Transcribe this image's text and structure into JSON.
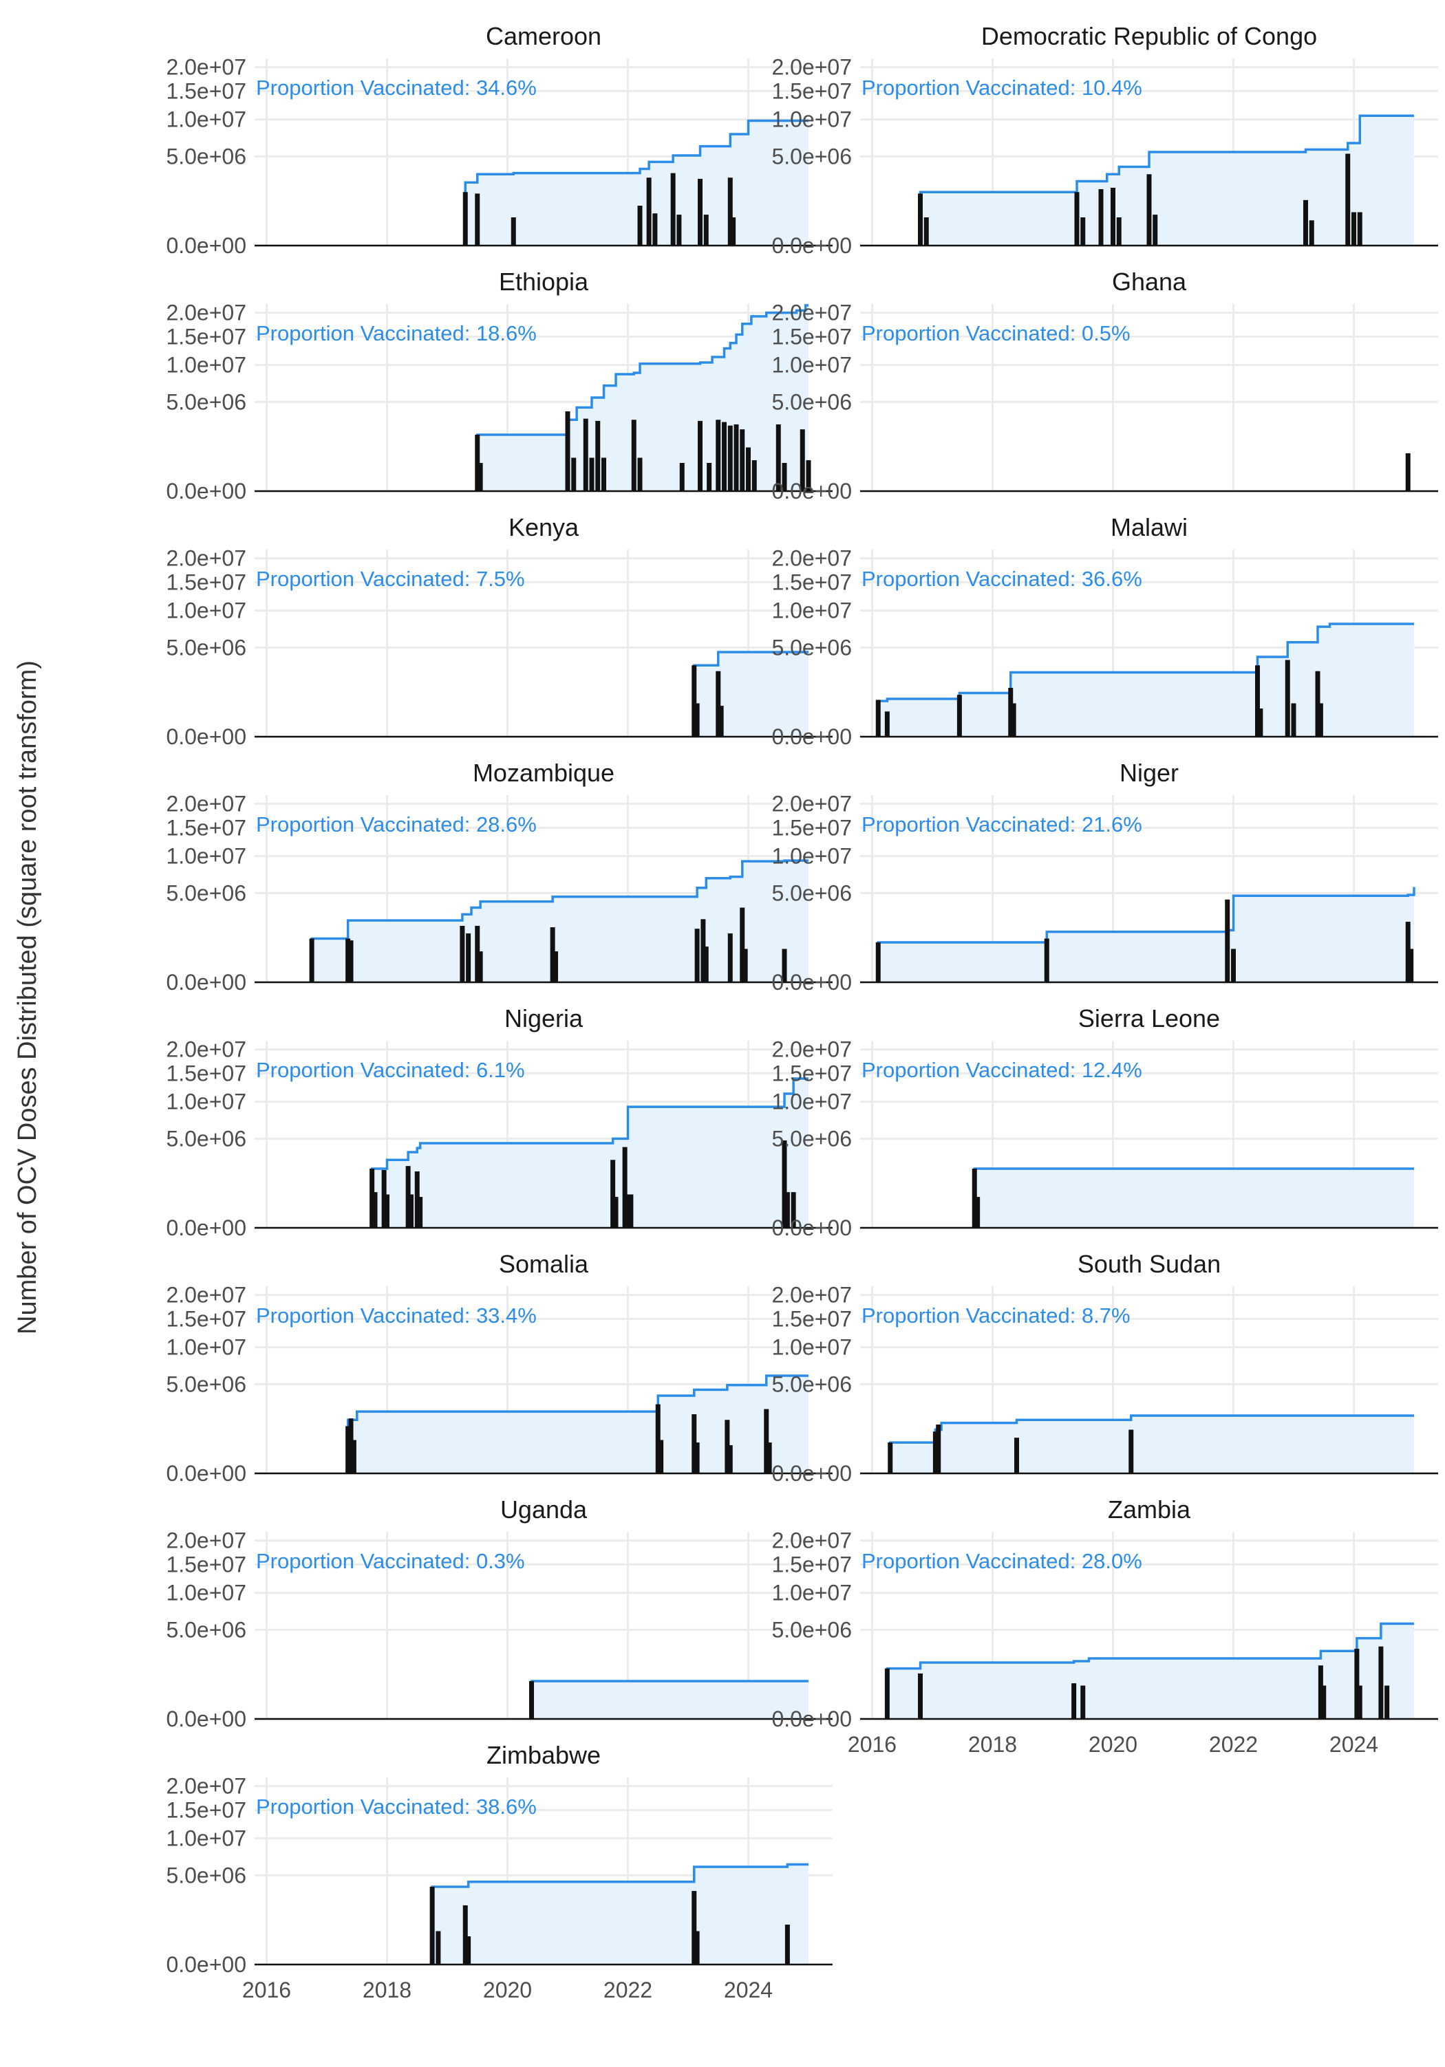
{
  "chart_data": {
    "type": "step-area with bars (faceted)",
    "ylabel": "Number of OCV Doses Distributed (square root transform)",
    "y_scale": "sqrt",
    "ylim": [
      0,
      22000000
    ],
    "y_ticks": [
      {
        "value": 0,
        "label": "0.0e+00"
      },
      {
        "value": 5000000,
        "label": "5.0e+06"
      },
      {
        "value": 10000000,
        "label": "1.0e+07"
      },
      {
        "value": 15000000,
        "label": "1.5e+07"
      },
      {
        "value": 20000000,
        "label": "2.0e+07"
      }
    ],
    "xlim": [
      2015.8,
      2025.4
    ],
    "x_ticks": [
      {
        "value": 2016,
        "label": "2016"
      },
      {
        "value": 2018,
        "label": "2018"
      },
      {
        "value": 2020,
        "label": "2020"
      },
      {
        "value": 2022,
        "label": "2022"
      },
      {
        "value": 2024,
        "label": "2024"
      }
    ],
    "grid": true,
    "colors": {
      "cumulative_line": "#2b8de8",
      "cumulative_fill": "#e6f2fc",
      "bars": "#111111",
      "annotation": "#2b8de8",
      "grid": "#ebebeb"
    },
    "annotation_prefix": "Proportion Vaccinated: ",
    "panels": [
      {
        "country": "Cameroon",
        "proportion": "34.6%",
        "bars": [
          [
            2019.3,
            1800000
          ],
          [
            2019.5,
            1700000
          ],
          [
            2020.1,
            500000
          ],
          [
            2022.2,
            1000000
          ],
          [
            2022.35,
            2900000
          ],
          [
            2022.45,
            650000
          ],
          [
            2022.75,
            3300000
          ],
          [
            2022.85,
            600000
          ],
          [
            2023.2,
            2800000
          ],
          [
            2023.3,
            600000
          ],
          [
            2023.7,
            2900000
          ],
          [
            2023.75,
            500000
          ]
        ],
        "cumulative": [
          [
            2019.3,
            2500000
          ],
          [
            2019.5,
            3200000
          ],
          [
            2020.1,
            3300000
          ],
          [
            2022.2,
            3700000
          ],
          [
            2022.35,
            4400000
          ],
          [
            2022.75,
            5100000
          ],
          [
            2023.2,
            6200000
          ],
          [
            2023.7,
            7800000
          ],
          [
            2024.0,
            9800000
          ],
          [
            2025.0,
            9800000
          ]
        ]
      },
      {
        "country": "Democratic Republic of Congo",
        "proportion": "10.4%",
        "bars": [
          [
            2016.8,
            1700000
          ],
          [
            2016.9,
            500000
          ],
          [
            2019.4,
            1800000
          ],
          [
            2019.5,
            500000
          ],
          [
            2019.8,
            2000000
          ],
          [
            2020.0,
            2100000
          ],
          [
            2020.1,
            500000
          ],
          [
            2020.6,
            3200000
          ],
          [
            2020.7,
            600000
          ],
          [
            2023.2,
            1300000
          ],
          [
            2023.3,
            400000
          ],
          [
            2023.9,
            5300000
          ],
          [
            2024.0,
            700000
          ],
          [
            2024.1,
            700000
          ]
        ],
        "cumulative": [
          [
            2016.8,
            1800000
          ],
          [
            2019.4,
            2600000
          ],
          [
            2019.9,
            3200000
          ],
          [
            2020.1,
            3900000
          ],
          [
            2020.6,
            5500000
          ],
          [
            2023.2,
            5800000
          ],
          [
            2023.9,
            6600000
          ],
          [
            2024.1,
            10600000
          ],
          [
            2025.0,
            10600000
          ]
        ]
      },
      {
        "country": "Ethiopia",
        "proportion": "18.6%",
        "bars": [
          [
            2019.5,
            2000000
          ],
          [
            2019.55,
            500000
          ],
          [
            2021.0,
            4000000
          ],
          [
            2021.1,
            700000
          ],
          [
            2021.3,
            3300000
          ],
          [
            2021.4,
            700000
          ],
          [
            2021.5,
            3100000
          ],
          [
            2021.6,
            700000
          ],
          [
            2022.1,
            3200000
          ],
          [
            2022.2,
            700000
          ],
          [
            2022.9,
            500000
          ],
          [
            2023.2,
            3100000
          ],
          [
            2023.35,
            500000
          ],
          [
            2023.5,
            3200000
          ],
          [
            2023.6,
            3000000
          ],
          [
            2023.7,
            2700000
          ],
          [
            2023.8,
            2800000
          ],
          [
            2023.9,
            2400000
          ],
          [
            2024.0,
            1200000
          ],
          [
            2024.1,
            600000
          ],
          [
            2024.5,
            2800000
          ],
          [
            2024.6,
            500000
          ],
          [
            2024.9,
            2400000
          ],
          [
            2025.0,
            600000
          ]
        ],
        "cumulative": [
          [
            2019.5,
            2000000
          ],
          [
            2021.0,
            3200000
          ],
          [
            2021.15,
            4400000
          ],
          [
            2021.4,
            5500000
          ],
          [
            2021.6,
            7000000
          ],
          [
            2021.8,
            8600000
          ],
          [
            2022.1,
            8800000
          ],
          [
            2022.2,
            10200000
          ],
          [
            2023.2,
            10400000
          ],
          [
            2023.4,
            11300000
          ],
          [
            2023.6,
            12800000
          ],
          [
            2023.7,
            13800000
          ],
          [
            2023.8,
            15400000
          ],
          [
            2023.9,
            17600000
          ],
          [
            2024.05,
            19200000
          ],
          [
            2024.3,
            20000000
          ],
          [
            2024.8,
            20500000
          ],
          [
            2024.95,
            21700000
          ],
          [
            2025.0,
            21700000
          ]
        ]
      },
      {
        "country": "Ghana",
        "proportion": "0.5%",
        "bars": [
          [
            2024.9,
            900000
          ]
        ],
        "cumulative": []
      },
      {
        "country": "Kenya",
        "proportion": "7.5%",
        "bars": [
          [
            2023.1,
            3200000
          ],
          [
            2023.15,
            700000
          ],
          [
            2023.5,
            2700000
          ],
          [
            2023.55,
            600000
          ]
        ],
        "cumulative": [
          [
            2023.1,
            3200000
          ],
          [
            2023.5,
            4500000
          ],
          [
            2025.0,
            4500000
          ]
        ]
      },
      {
        "country": "Malawi",
        "proportion": "36.6%",
        "bars": [
          [
            2016.1,
            850000
          ],
          [
            2016.25,
            400000
          ],
          [
            2017.45,
            1100000
          ],
          [
            2018.3,
            1500000
          ],
          [
            2018.35,
            700000
          ],
          [
            2022.4,
            3200000
          ],
          [
            2022.45,
            500000
          ],
          [
            2022.9,
            3700000
          ],
          [
            2023.0,
            700000
          ],
          [
            2023.4,
            2700000
          ],
          [
            2023.45,
            700000
          ]
        ],
        "cumulative": [
          [
            2016.1,
            800000
          ],
          [
            2016.25,
            900000
          ],
          [
            2017.45,
            1200000
          ],
          [
            2018.3,
            2600000
          ],
          [
            2022.4,
            4000000
          ],
          [
            2022.9,
            5600000
          ],
          [
            2023.4,
            7600000
          ],
          [
            2023.6,
            8000000
          ],
          [
            2025.0,
            8000000
          ]
        ]
      },
      {
        "country": "Mozambique",
        "proportion": "28.6%",
        "bars": [
          [
            2016.75,
            1200000
          ],
          [
            2017.35,
            1200000
          ],
          [
            2017.4,
            1100000
          ],
          [
            2019.25,
            2000000
          ],
          [
            2019.35,
            1500000
          ],
          [
            2019.5,
            2000000
          ],
          [
            2019.55,
            600000
          ],
          [
            2020.75,
            1900000
          ],
          [
            2020.8,
            600000
          ],
          [
            2023.15,
            1800000
          ],
          [
            2023.25,
            2500000
          ],
          [
            2023.3,
            800000
          ],
          [
            2023.7,
            1500000
          ],
          [
            2023.9,
            3500000
          ],
          [
            2023.95,
            700000
          ],
          [
            2024.6,
            700000
          ]
        ],
        "cumulative": [
          [
            2016.75,
            1200000
          ],
          [
            2017.35,
            2400000
          ],
          [
            2019.25,
            2900000
          ],
          [
            2019.4,
            3500000
          ],
          [
            2019.55,
            4100000
          ],
          [
            2020.75,
            4600000
          ],
          [
            2023.15,
            5600000
          ],
          [
            2023.3,
            6800000
          ],
          [
            2023.7,
            7000000
          ],
          [
            2023.9,
            9200000
          ],
          [
            2024.6,
            9300000
          ],
          [
            2025.0,
            9300000
          ]
        ]
      },
      {
        "country": "Niger",
        "proportion": "21.6%",
        "bars": [
          [
            2016.1,
            1000000
          ],
          [
            2018.9,
            1200000
          ],
          [
            2021.9,
            4300000
          ],
          [
            2022.0,
            700000
          ],
          [
            2024.9,
            2300000
          ],
          [
            2024.95,
            700000
          ]
        ],
        "cumulative": [
          [
            2016.1,
            1000000
          ],
          [
            2018.9,
            1600000
          ],
          [
            2021.9,
            1700000
          ],
          [
            2022.0,
            4700000
          ],
          [
            2024.9,
            4800000
          ],
          [
            2025.0,
            5700000
          ]
        ]
      },
      {
        "country": "Nigeria",
        "proportion": "6.1%",
        "bars": [
          [
            2017.75,
            2200000
          ],
          [
            2017.8,
            800000
          ],
          [
            2017.95,
            2100000
          ],
          [
            2018.0,
            700000
          ],
          [
            2018.35,
            2400000
          ],
          [
            2018.4,
            700000
          ],
          [
            2018.5,
            2000000
          ],
          [
            2018.55,
            600000
          ],
          [
            2021.75,
            2900000
          ],
          [
            2021.8,
            600000
          ],
          [
            2021.95,
            4100000
          ],
          [
            2022.0,
            700000
          ],
          [
            2022.05,
            700000
          ],
          [
            2024.6,
            4800000
          ],
          [
            2024.65,
            800000
          ],
          [
            2024.75,
            800000
          ]
        ],
        "cumulative": [
          [
            2017.75,
            2200000
          ],
          [
            2018.0,
            2900000
          ],
          [
            2018.35,
            3600000
          ],
          [
            2018.5,
            4000000
          ],
          [
            2018.55,
            4500000
          ],
          [
            2021.75,
            5000000
          ],
          [
            2022.0,
            9200000
          ],
          [
            2024.6,
            11300000
          ],
          [
            2024.75,
            14000000
          ],
          [
            2025.0,
            14000000
          ]
        ]
      },
      {
        "country": "Sierra Leone",
        "proportion": "12.4%",
        "bars": [
          [
            2017.7,
            2200000
          ],
          [
            2017.75,
            600000
          ]
        ],
        "cumulative": [
          [
            2017.7,
            2200000
          ],
          [
            2025.0,
            2200000
          ]
        ]
      },
      {
        "country": "Somalia",
        "proportion": "33.4%",
        "bars": [
          [
            2017.35,
            1400000
          ],
          [
            2017.4,
            1900000
          ],
          [
            2017.45,
            700000
          ],
          [
            2022.5,
            3000000
          ],
          [
            2022.55,
            700000
          ],
          [
            2023.1,
            2200000
          ],
          [
            2023.15,
            600000
          ],
          [
            2023.65,
            1800000
          ],
          [
            2023.7,
            500000
          ],
          [
            2024.3,
            2600000
          ],
          [
            2024.35,
            600000
          ]
        ],
        "cumulative": [
          [
            2017.35,
            1800000
          ],
          [
            2017.5,
            2400000
          ],
          [
            2022.5,
            3800000
          ],
          [
            2023.1,
            4400000
          ],
          [
            2023.65,
            4900000
          ],
          [
            2024.3,
            6000000
          ],
          [
            2025.0,
            6000000
          ]
        ]
      },
      {
        "country": "South Sudan",
        "proportion": "8.7%",
        "bars": [
          [
            2016.3,
            600000
          ],
          [
            2017.05,
            1100000
          ],
          [
            2017.1,
            1500000
          ],
          [
            2018.4,
            800000
          ],
          [
            2020.3,
            1200000
          ]
        ],
        "cumulative": [
          [
            2016.3,
            600000
          ],
          [
            2017.05,
            1200000
          ],
          [
            2017.15,
            1600000
          ],
          [
            2018.4,
            1800000
          ],
          [
            2020.3,
            2100000
          ],
          [
            2025.0,
            2100000
          ]
        ]
      },
      {
        "country": "Uganda",
        "proportion": "0.3%",
        "bars": [
          [
            2020.4,
            900000
          ]
        ],
        "cumulative": [
          [
            2020.4,
            900000
          ],
          [
            2025.0,
            900000
          ]
        ]
      },
      {
        "country": "Zambia",
        "proportion": "28.0%",
        "bars": [
          [
            2016.25,
            1600000
          ],
          [
            2016.8,
            1300000
          ],
          [
            2019.35,
            800000
          ],
          [
            2019.5,
            700000
          ],
          [
            2023.45,
            1800000
          ],
          [
            2023.5,
            700000
          ],
          [
            2024.05,
            3100000
          ],
          [
            2024.1,
            700000
          ],
          [
            2024.45,
            3300000
          ],
          [
            2024.55,
            700000
          ]
        ],
        "cumulative": [
          [
            2016.25,
            1600000
          ],
          [
            2016.8,
            2000000
          ],
          [
            2019.35,
            2100000
          ],
          [
            2019.6,
            2300000
          ],
          [
            2023.45,
            2900000
          ],
          [
            2024.05,
            4100000
          ],
          [
            2024.45,
            5700000
          ],
          [
            2025.0,
            5700000
          ]
        ]
      },
      {
        "country": "Zimbabwe",
        "proportion": "38.6%",
        "bars": [
          [
            2018.75,
            3800000
          ],
          [
            2018.85,
            700000
          ],
          [
            2019.3,
            2200000
          ],
          [
            2019.35,
            500000
          ],
          [
            2023.1,
            3400000
          ],
          [
            2023.15,
            700000
          ],
          [
            2024.65,
            1000000
          ]
        ],
        "cumulative": [
          [
            2018.75,
            3800000
          ],
          [
            2019.35,
            4300000
          ],
          [
            2023.1,
            6000000
          ],
          [
            2024.65,
            6300000
          ],
          [
            2025.0,
            6300000
          ]
        ]
      }
    ]
  }
}
